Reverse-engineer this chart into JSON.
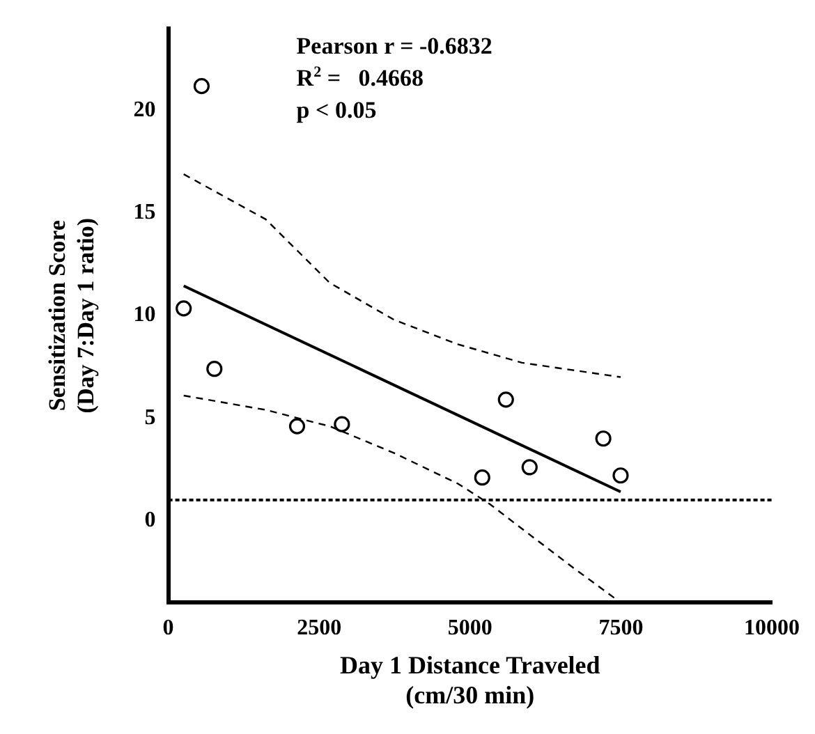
{
  "chart_data": {
    "type": "scatter",
    "xlabel": "Day 1 Distance Traveled\n(cm/30 min)",
    "ylabel": "Sensitization Score\n(Day 7:Day 1 ratio)",
    "xlim": [
      0,
      10000
    ],
    "xticks": [
      0,
      2500,
      5000,
      7500,
      10000
    ],
    "ylim": [
      -4,
      24
    ],
    "yticks": [
      0,
      5,
      10,
      15,
      20
    ],
    "grid": false,
    "legend": false,
    "series": [
      {
        "color": "#000000",
        "marker": "circle",
        "x": [
          255,
          552,
          764,
          2134,
          2877,
          5202,
          5594,
          5987,
          7208,
          7495
        ],
        "values": [
          10.35,
          21.2,
          7.4,
          4.6,
          4.7,
          2.1,
          5.9,
          2.6,
          4.0,
          2.2
        ]
      },
      {
        "type": "line",
        "color": "#000000",
        "marker": "none",
        "line_style": "solid",
        "x": [
          255,
          7495
        ],
        "values": [
          11.45,
          1.4
        ]
      },
      {
        "type": "line",
        "color": "#000000",
        "marker": "none",
        "line_style": "dashed",
        "x": [
          255,
          1614,
          2675,
          3737,
          4798,
          5860,
          7495
        ],
        "values": [
          16.9,
          14.7,
          11.6,
          9.8,
          8.6,
          7.7,
          7.0
        ]
      },
      {
        "type": "line",
        "color": "#000000",
        "marker": "none",
        "line_style": "dashed",
        "x": [
          255,
          1614,
          2675,
          3737,
          4798,
          5329,
          5860,
          6709,
          7495
        ],
        "values": [
          6.1,
          5.4,
          4.6,
          3.3,
          1.8,
          0.8,
          -0.4,
          -2.3,
          -4.0
        ]
      }
    ],
    "ref_lines": [
      {
        "axis": "y",
        "value": 1,
        "line_style": "dotted",
        "color": "#000000"
      }
    ],
    "annotations": [
      "Pearson r = -0.6832",
      "R$^{2}$ =   0.4668",
      "p < 0.05"
    ]
  }
}
